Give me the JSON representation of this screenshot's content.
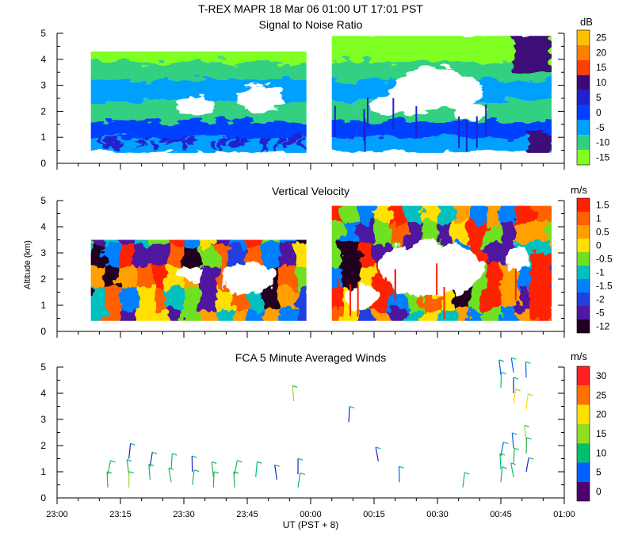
{
  "header": {
    "title": "T-REX   MAPR 18 Mar 06   01:00 UT   17:01   PST"
  },
  "shared_x": {
    "xlabel": "UT  (PST + 8)",
    "ticks": [
      "23:00",
      "23:15",
      "23:30",
      "23:45",
      "00:00",
      "00:15",
      "00:30",
      "00:45",
      "01:00"
    ],
    "range_minutes": [
      0,
      120
    ]
  },
  "ylabel": "Altitude (km)",
  "chart_data": [
    {
      "type": "heatmap",
      "title": "Signal to Noise Ratio",
      "unit": "dB",
      "ylim": [
        0,
        5
      ],
      "yticks": [
        0,
        1,
        2,
        3,
        4,
        5
      ],
      "colorbar": {
        "labels": [
          "25",
          "20",
          "15",
          "10",
          "5",
          "0",
          "-5",
          "-10",
          "-15"
        ],
        "colors": [
          "#ffc000",
          "#ff8000",
          "#ff4000",
          "#3c0a78",
          "#2020d0",
          "#0040ff",
          "#00a0ff",
          "#30d080",
          "#80ff20"
        ]
      },
      "blocks": [
        [
          8,
          59,
          0.4,
          4.3
        ],
        [
          65,
          117,
          0.4,
          4.9
        ]
      ],
      "spot_color": "#2020d0"
    },
    {
      "type": "heatmap",
      "title": "Vertical Velocity",
      "unit": "m/s",
      "ylim": [
        0,
        5
      ],
      "yticks": [
        0,
        1,
        2,
        3,
        4,
        5
      ],
      "colorbar": {
        "labels": [
          "1.5",
          "1",
          "0.5",
          "0",
          "-0.5",
          "-1",
          "-1.5",
          "-2",
          "-5",
          "-12"
        ],
        "colors": [
          "#ff2000",
          "#ff6000",
          "#ffa000",
          "#ffe000",
          "#70e020",
          "#00c0c0",
          "#0080ff",
          "#2040e0",
          "#5018a0",
          "#200020"
        ]
      },
      "blocks": [
        [
          8,
          59,
          0.4,
          3.5
        ],
        [
          65,
          117,
          0.4,
          4.8
        ]
      ],
      "spot_color": "#ff2000"
    },
    {
      "type": "scatter",
      "title": "FCA 5 Minute Averaged Winds",
      "unit": "m/s",
      "ylim": [
        0,
        5
      ],
      "yticks": [
        0,
        1,
        2,
        3,
        4,
        5
      ],
      "colorbar": {
        "labels": [
          "30",
          "25",
          "20",
          "15",
          "10",
          "5",
          "0"
        ],
        "colors": [
          "#ff2020",
          "#ff7000",
          "#ffe000",
          "#90e020",
          "#00c070",
          "#0060ff",
          "#500070"
        ]
      },
      "barbs": [
        [
          12,
          0.9,
          "#30b050",
          "#00c070"
        ],
        [
          12,
          0.4,
          "#30b050",
          "#00c070"
        ],
        [
          17,
          1.5,
          "#2020d0",
          "#00c070"
        ],
        [
          17,
          0.9,
          "#30b050",
          "#00c070"
        ],
        [
          17,
          0.4,
          "#90e020",
          "#30b050"
        ],
        [
          22,
          1.2,
          "#2020d0",
          "#00c070"
        ],
        [
          22,
          0.7,
          "#30b050",
          "#00c070"
        ],
        [
          27,
          1.1,
          "#00c070",
          "#30b050"
        ],
        [
          27,
          0.6,
          "#30b050",
          "#00c070"
        ],
        [
          32,
          1.0,
          "#2020d0",
          "#00c070"
        ],
        [
          32,
          0.5,
          "#30b050",
          "#00c070"
        ],
        [
          37,
          0.8,
          "#30b050",
          "#00c070"
        ],
        [
          37,
          0.4,
          "#30b050",
          "#00c070"
        ],
        [
          42,
          0.9,
          "#30b050",
          "#00c070"
        ],
        [
          42,
          0.4,
          "#30b050",
          "#00c070"
        ],
        [
          47,
          0.8,
          "#00c070",
          "#30b050"
        ],
        [
          52,
          0.7,
          "#2020d0",
          "#00c070"
        ],
        [
          57,
          0.9,
          "#2020d0",
          "#00c070"
        ],
        [
          57,
          0.4,
          "#00c070",
          "#30b050"
        ],
        [
          56,
          3.7,
          "#90e020",
          "#30b050"
        ],
        [
          69,
          2.9,
          "#2020d0",
          "#00c070"
        ],
        [
          76,
          1.4,
          "#2020d0",
          "#00c070"
        ],
        [
          81,
          0.6,
          "#0060ff",
          "#00c070"
        ],
        [
          96,
          0.4,
          "#00c070",
          "#30b050"
        ],
        [
          105,
          4.7,
          "#0060ff",
          "#00c070"
        ],
        [
          105,
          4.2,
          "#00c070",
          "#30b050"
        ],
        [
          105,
          1.6,
          "#0060ff",
          "#00c070"
        ],
        [
          105,
          1.1,
          "#00c070",
          "#30b050"
        ],
        [
          105,
          0.6,
          "#00c070",
          "#30b050"
        ],
        [
          108,
          4.8,
          "#0060ff",
          "#00c070"
        ],
        [
          108,
          4.0,
          "#2020d0",
          "#00c070"
        ],
        [
          108,
          3.6,
          "#ffe000",
          "#90e020"
        ],
        [
          108,
          1.9,
          "#0060ff",
          "#00c070"
        ],
        [
          108,
          1.3,
          "#30b050",
          "#00c070"
        ],
        [
          108,
          0.8,
          "#00c070",
          "#30b050"
        ],
        [
          111,
          4.6,
          "#0060ff",
          "#00c070"
        ],
        [
          111,
          3.4,
          "#ffe000",
          "#90e020"
        ],
        [
          111,
          2.2,
          "#90e020",
          "#30b050"
        ],
        [
          111,
          1.7,
          "#30b050",
          "#00c070"
        ],
        [
          111,
          1.0,
          "#2020d0",
          "#00c070"
        ]
      ]
    }
  ]
}
